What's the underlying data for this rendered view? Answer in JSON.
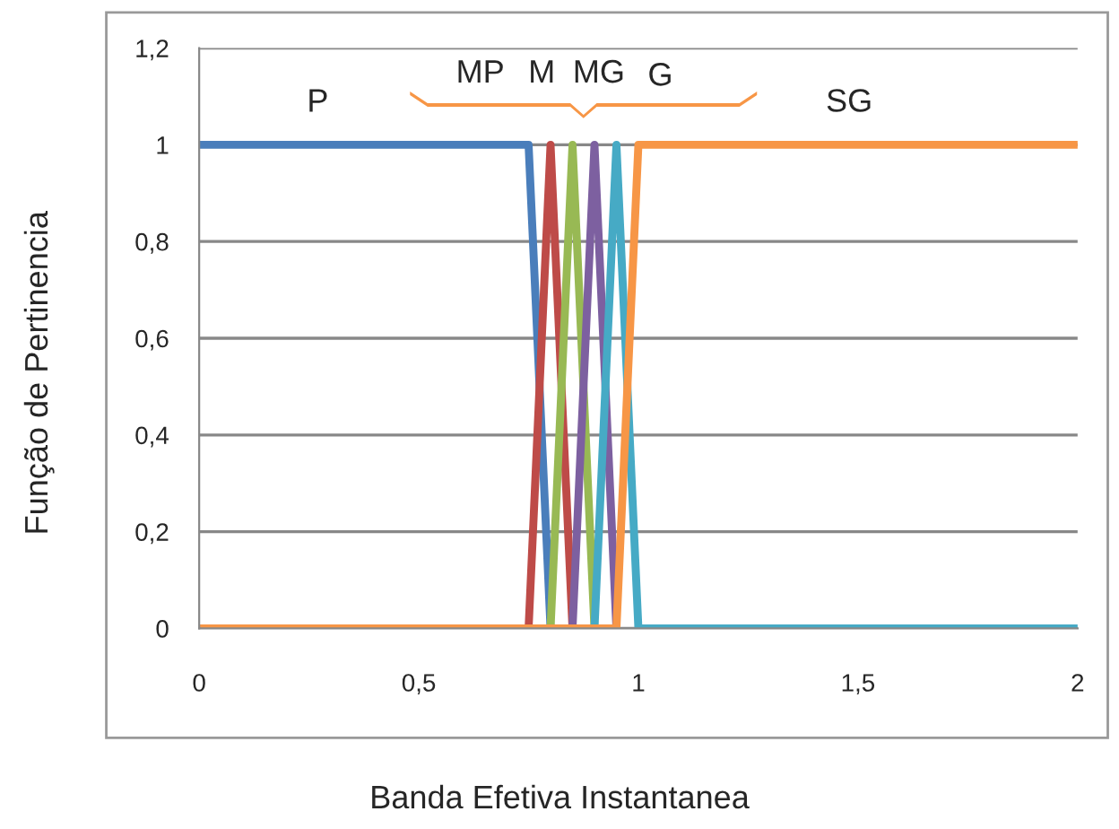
{
  "chart_data": {
    "type": "line",
    "xlabel": "Banda Efetiva Instantanea",
    "ylabel": "Função de Pertinencia",
    "series": [
      {
        "x": [
          0,
          0.75,
          0.8
        ],
        "values": [
          1,
          1,
          0
        ],
        "color": "#4a7ebb"
      },
      {
        "x": [
          0.75,
          0.8,
          0.85
        ],
        "values": [
          0,
          1,
          0
        ],
        "color": "#be4b48"
      },
      {
        "x": [
          0.8,
          0.85,
          0.9
        ],
        "values": [
          0,
          1,
          0
        ],
        "color": "#98b954"
      },
      {
        "x": [
          0.85,
          0.9,
          0.95
        ],
        "values": [
          0,
          1,
          0
        ],
        "color": "#7d60a0"
      },
      {
        "x": [
          0.9,
          0.95,
          1,
          2
        ],
        "values": [
          0,
          1,
          0,
          0
        ],
        "color": "#46aac5"
      },
      {
        "x": [
          0,
          0.95,
          1,
          2
        ],
        "values": [
          0,
          0,
          1,
          1
        ],
        "color": "#f79646"
      }
    ],
    "annotations": [
      "P",
      "MP",
      "M",
      "MG",
      "G",
      "SG"
    ],
    "xlim": [
      0,
      2
    ],
    "xticks": [
      0,
      {
        "value": 0.5,
        "label": "0,5"
      },
      1,
      {
        "value": 1.5,
        "label": "1,5"
      },
      2
    ],
    "ylim": [
      0,
      1.2
    ],
    "yticks": [
      0,
      {
        "value": 0.2,
        "label": "0,2"
      },
      {
        "value": 0.4,
        "label": "0,4"
      },
      {
        "value": 0.6,
        "label": "0,6"
      },
      {
        "value": 0.8,
        "label": "0,8"
      },
      1,
      {
        "value": 1.2,
        "label": "1,2"
      }
    ],
    "grid": "y",
    "legend": false,
    "marker": "none",
    "line_style": "solid"
  }
}
